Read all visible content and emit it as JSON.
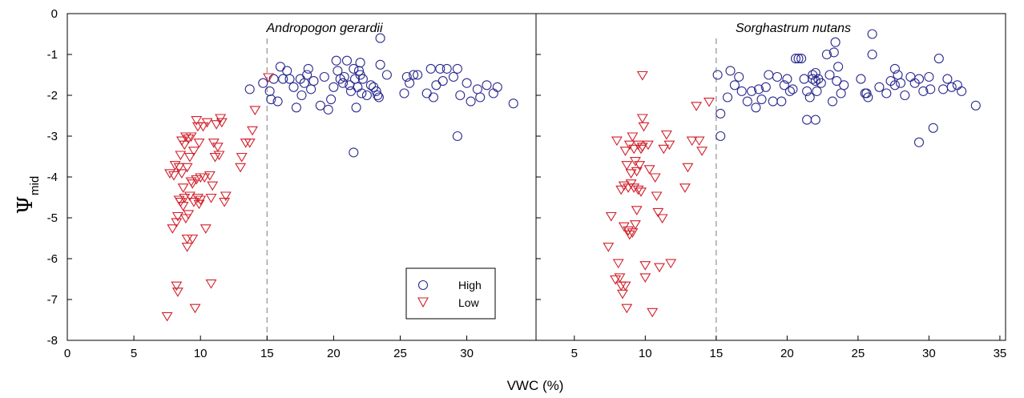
{
  "ylabel_symbol": "Ψ",
  "ylabel_subscript": "mid",
  "xlabel": "VWC (%)",
  "legend": {
    "high": "High",
    "low": "Low"
  },
  "colors": {
    "high": "#2b2b8f",
    "low": "#d11f2a",
    "threshold": "#9a9a9a"
  },
  "chart_data": [
    {
      "type": "scatter",
      "title": "Andropogon gerardii",
      "xlim": [
        0,
        35
      ],
      "ylim": [
        -8,
        0
      ],
      "xticks": [
        "0",
        "5",
        "10",
        "15",
        "20",
        "25",
        "30"
      ],
      "yticks": [
        "0",
        "-1",
        "-2",
        "-3",
        "-4",
        "-5",
        "-6",
        "-7",
        "-8"
      ],
      "threshold_x": 15,
      "series": [
        {
          "name": "High",
          "marker": "circle",
          "x": [
            13.7,
            14.7,
            15.2,
            15.3,
            15.5,
            15.8,
            16.0,
            16.2,
            16.5,
            16.7,
            17.0,
            17.2,
            17.5,
            17.6,
            17.8,
            18.0,
            18.1,
            18.3,
            18.5,
            19.0,
            19.3,
            19.6,
            19.8,
            20.0,
            20.2,
            20.3,
            20.5,
            20.7,
            20.8,
            21.0,
            21.2,
            21.3,
            21.5,
            21.6,
            21.7,
            21.8,
            21.9,
            22.0,
            22.0,
            22.1,
            22.2,
            22.5,
            22.8,
            23.0,
            23.2,
            23.3,
            23.4,
            23.5,
            24.0,
            25.3,
            25.5,
            25.7,
            26.0,
            26.3,
            27.0,
            27.3,
            27.5,
            27.7,
            28.0,
            28.2,
            28.5,
            29.0,
            29.3,
            29.5,
            30.0,
            30.3,
            30.8,
            31.0,
            31.5,
            32.0,
            32.3,
            33.5,
            21.5,
            29.3,
            23.5
          ],
          "y": [
            -1.85,
            -1.7,
            -1.9,
            -2.1,
            -1.6,
            -2.15,
            -1.3,
            -1.6,
            -1.4,
            -1.6,
            -1.8,
            -2.3,
            -1.6,
            -2.0,
            -1.7,
            -1.5,
            -1.35,
            -1.85,
            -1.65,
            -2.25,
            -1.55,
            -2.35,
            -2.1,
            -1.8,
            -1.15,
            -1.4,
            -1.6,
            -1.7,
            -1.55,
            -1.15,
            -1.75,
            -1.9,
            -1.35,
            -1.6,
            -2.3,
            -1.8,
            -1.4,
            -1.2,
            -1.5,
            -1.95,
            -1.6,
            -2.0,
            -1.75,
            -1.8,
            -1.9,
            -2.0,
            -2.05,
            -0.6,
            -1.5,
            -1.95,
            -1.55,
            -1.7,
            -1.5,
            -1.5,
            -1.95,
            -1.35,
            -2.05,
            -1.75,
            -1.35,
            -1.65,
            -1.35,
            -1.55,
            -1.35,
            -2.0,
            -1.7,
            -2.15,
            -1.85,
            -2.05,
            -1.75,
            -1.95,
            -1.8,
            -2.2,
            -3.4,
            -3.0,
            -1.25
          ]
        },
        {
          "name": "Low",
          "marker": "triangle-down",
          "x": [
            7.5,
            7.7,
            7.9,
            8.0,
            8.1,
            8.2,
            8.2,
            8.3,
            8.3,
            8.4,
            8.4,
            8.5,
            8.5,
            8.6,
            8.6,
            8.7,
            8.7,
            8.8,
            8.8,
            8.9,
            8.9,
            9.0,
            9.0,
            9.0,
            9.1,
            9.1,
            9.2,
            9.2,
            9.3,
            9.3,
            9.4,
            9.4,
            9.5,
            9.5,
            9.6,
            9.7,
            9.7,
            9.8,
            9.8,
            9.9,
            9.9,
            10.0,
            10.0,
            10.2,
            10.3,
            10.4,
            10.5,
            10.7,
            10.8,
            10.8,
            10.9,
            11.0,
            11.1,
            11.2,
            11.3,
            11.4,
            11.5,
            11.6,
            11.8,
            11.9,
            13.0,
            13.1,
            13.4,
            13.7,
            13.9,
            14.1,
            15.1
          ],
          "y": [
            -7.4,
            -3.9,
            -5.25,
            -3.95,
            -3.7,
            -5.1,
            -6.65,
            -4.95,
            -6.8,
            -3.75,
            -4.55,
            -3.45,
            -4.6,
            -3.9,
            -3.1,
            -4.25,
            -4.7,
            -3.2,
            -4.5,
            -3.0,
            -5.0,
            -3.75,
            -5.5,
            -5.7,
            -4.9,
            -3.05,
            -3.5,
            -4.45,
            -4.1,
            -3.0,
            -4.15,
            -5.5,
            -3.35,
            -4.6,
            -7.2,
            -2.6,
            -4.05,
            -2.75,
            -4.5,
            -3.15,
            -4.65,
            -4.55,
            -4.0,
            -2.75,
            -4.0,
            -5.25,
            -2.65,
            -3.95,
            -6.6,
            -4.5,
            -4.2,
            -3.15,
            -3.5,
            -2.7,
            -3.25,
            -3.45,
            -2.55,
            -2.65,
            -4.6,
            -4.45,
            -3.75,
            -3.5,
            -3.15,
            -3.15,
            -2.85,
            -2.35,
            -1.55
          ]
        }
      ]
    },
    {
      "type": "scatter",
      "title": "Sorghastrum nutans",
      "xlim": [
        0,
        35
      ],
      "ylim": [
        -8,
        0
      ],
      "xticks": [
        "5",
        "10",
        "15",
        "20",
        "25",
        "30",
        "35"
      ],
      "yticks": [],
      "threshold_x": 15,
      "series": [
        {
          "name": "High",
          "marker": "circle",
          "x": [
            15.1,
            15.3,
            15.8,
            16.0,
            16.3,
            16.6,
            16.8,
            17.2,
            17.5,
            17.8,
            18.0,
            18.2,
            18.5,
            18.7,
            19.0,
            19.3,
            19.6,
            19.8,
            20.0,
            20.2,
            20.4,
            20.6,
            20.8,
            21.0,
            21.2,
            21.4,
            21.6,
            21.8,
            22.0,
            22.0,
            22.1,
            22.2,
            22.4,
            22.8,
            23.0,
            23.2,
            23.4,
            23.6,
            23.8,
            24.0,
            25.2,
            25.5,
            25.7,
            26.0,
            26.5,
            27.0,
            27.3,
            27.6,
            27.8,
            28.0,
            28.3,
            28.7,
            29.0,
            29.3,
            29.6,
            30.0,
            30.3,
            30.7,
            31.0,
            31.3,
            31.6,
            32.0,
            32.3,
            33.3,
            15.3,
            21.4,
            21.8,
            26.0,
            25.6,
            29.3,
            30.1,
            23.3,
            23.5,
            22.0,
            27.6
          ],
          "y": [
            -1.5,
            -3.0,
            -2.05,
            -1.4,
            -1.75,
            -1.55,
            -1.9,
            -2.15,
            -1.9,
            -2.3,
            -1.85,
            -2.1,
            -1.8,
            -1.5,
            -2.15,
            -1.55,
            -2.15,
            -1.75,
            -1.6,
            -1.9,
            -1.85,
            -1.1,
            -1.1,
            -1.1,
            -1.6,
            -1.9,
            -2.05,
            -1.5,
            -1.65,
            -2.6,
            -1.9,
            -1.6,
            -1.7,
            -1.0,
            -1.5,
            -2.15,
            -0.7,
            -1.3,
            -1.95,
            -1.75,
            -1.6,
            -1.95,
            -2.05,
            -1.0,
            -1.8,
            -1.95,
            -1.65,
            -1.75,
            -1.5,
            -1.7,
            -2.0,
            -1.55,
            -1.7,
            -1.6,
            -1.9,
            -1.55,
            -2.8,
            -1.1,
            -1.85,
            -1.6,
            -1.8,
            -1.75,
            -1.9,
            -2.25,
            -2.45,
            -2.6,
            -1.6,
            -0.5,
            -1.95,
            -3.15,
            -1.85,
            -0.95,
            -1.65,
            -1.45,
            -1.35
          ]
        },
        {
          "name": "Low",
          "marker": "triangle-down",
          "x": [
            7.4,
            7.6,
            7.9,
            8.0,
            8.1,
            8.2,
            8.3,
            8.3,
            8.4,
            8.5,
            8.5,
            8.6,
            8.6,
            8.7,
            8.7,
            8.8,
            8.8,
            8.9,
            8.9,
            9.0,
            9.0,
            9.1,
            9.1,
            9.2,
            9.2,
            9.3,
            9.3,
            9.4,
            9.4,
            9.5,
            9.5,
            9.6,
            9.7,
            9.7,
            9.8,
            9.8,
            9.9,
            10.0,
            10.0,
            10.2,
            10.3,
            10.5,
            10.7,
            10.8,
            10.9,
            11.0,
            11.2,
            11.3,
            11.5,
            11.7,
            11.8,
            12.8,
            13.0,
            13.3,
            13.6,
            13.8,
            14.0,
            14.5,
            9.8
          ],
          "y": [
            -5.7,
            -4.95,
            -6.5,
            -3.1,
            -6.1,
            -6.45,
            -6.65,
            -4.3,
            -6.85,
            -4.2,
            -5.2,
            -6.65,
            -3.35,
            -3.7,
            -7.2,
            -4.25,
            -5.3,
            -3.2,
            -5.4,
            -4.15,
            -3.9,
            -5.35,
            -3.0,
            -3.3,
            -4.25,
            -3.6,
            -5.15,
            -3.85,
            -4.8,
            -4.3,
            -3.2,
            -3.7,
            -3.3,
            -4.35,
            -3.25,
            -2.55,
            -2.75,
            -6.15,
            -6.45,
            -3.2,
            -3.8,
            -7.3,
            -4.0,
            -4.45,
            -4.85,
            -6.2,
            -5.0,
            -3.3,
            -2.95,
            -3.2,
            -6.1,
            -4.25,
            -3.75,
            -3.1,
            -2.25,
            -3.1,
            -3.35,
            -2.15,
            -1.5
          ]
        }
      ]
    }
  ]
}
